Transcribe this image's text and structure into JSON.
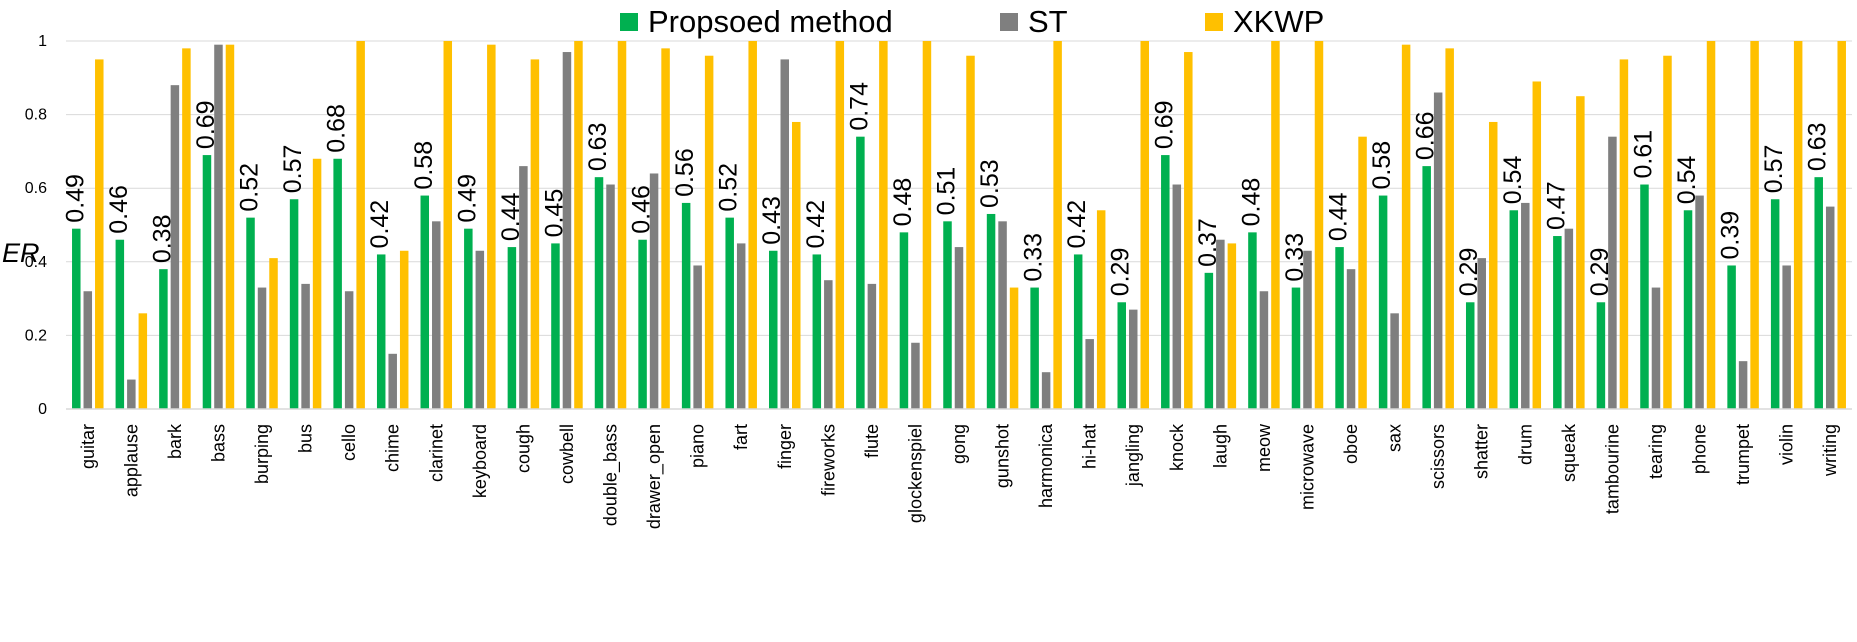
{
  "chart_data": {
    "type": "bar",
    "title": "",
    "xlabel": "",
    "ylabel": "ER",
    "ylim": [
      0,
      1
    ],
    "yticks": [
      "0",
      "0.2",
      "0.4",
      "0.6",
      "0.8",
      "1"
    ],
    "grid": true,
    "legend_position": "top",
    "categories": [
      "guitar",
      "applause",
      "bark",
      "bass",
      "burping",
      "bus",
      "cello",
      "chime",
      "clarinet",
      "keyboard",
      "cough",
      "cowbell",
      "double_bass",
      "drawer_open",
      "piano",
      "fart",
      "finger",
      "fireworks",
      "flute",
      "glockenspiel",
      "gong",
      "gunshot",
      "harmonica",
      "hi-hat",
      "jangling",
      "knock",
      "laugh",
      "meow",
      "microwave",
      "oboe",
      "sax",
      "scissors",
      "shatter",
      "drum",
      "squeak",
      "tambourine",
      "tearing",
      "phone",
      "trumpet",
      "violin",
      "writing"
    ],
    "series": [
      {
        "name": "Propsoed method",
        "color": "#00b050",
        "values": [
          0.49,
          0.46,
          0.38,
          0.69,
          0.52,
          0.57,
          0.68,
          0.42,
          0.58,
          0.49,
          0.44,
          0.45,
          0.63,
          0.46,
          0.56,
          0.52,
          0.43,
          0.42,
          0.74,
          0.48,
          0.51,
          0.53,
          0.33,
          0.42,
          0.29,
          0.69,
          0.37,
          0.48,
          0.33,
          0.44,
          0.58,
          0.66,
          0.29,
          0.54,
          0.47,
          0.29,
          0.61,
          0.54,
          0.39,
          0.57,
          0.63
        ],
        "data_labels": [
          "0.49",
          "0.46",
          "0.38",
          "0.69",
          "0.52",
          "0.57",
          "0.68",
          "0.42",
          "0.58",
          "0.49",
          "0.44",
          "0.45",
          "0.63",
          "0.46",
          "0.56",
          "0.52",
          "0.43",
          "0.42",
          "0.74",
          "0.48",
          "0.51",
          "0.53",
          "0.33",
          "0.42",
          "0.29",
          "0.69",
          "0.37",
          "0.48",
          "0.33",
          "0.44",
          "0.58",
          "0.66",
          "0.29",
          "0.54",
          "0.47",
          "0.29",
          "0.61",
          "0.54",
          "0.39",
          "0.57",
          "0.63"
        ]
      },
      {
        "name": "ST",
        "color": "#7f7f7f",
        "values": [
          0.32,
          0.08,
          0.88,
          0.99,
          0.33,
          0.34,
          0.32,
          0.15,
          0.51,
          0.43,
          0.66,
          0.97,
          0.61,
          0.64,
          0.39,
          0.45,
          0.95,
          0.35,
          0.34,
          0.18,
          0.44,
          0.51,
          0.1,
          0.19,
          0.27,
          0.61,
          0.46,
          0.32,
          0.43,
          0.38,
          0.26,
          0.86,
          0.41,
          0.56,
          0.49,
          0.74,
          0.33,
          0.58,
          0.13,
          0.39,
          0.55
        ]
      },
      {
        "name": "XKWP",
        "color": "#ffc000",
        "values": [
          0.95,
          0.26,
          0.98,
          0.99,
          0.41,
          0.68,
          1.0,
          0.43,
          1.0,
          0.99,
          0.95,
          1.0,
          1.0,
          0.98,
          0.96,
          1.0,
          0.78,
          1.0,
          1.0,
          1.0,
          0.96,
          0.33,
          1.0,
          0.54,
          1.0,
          0.97,
          0.45,
          1.0,
          1.0,
          0.74,
          0.99,
          0.98,
          0.78,
          0.89,
          0.85,
          0.95,
          0.96,
          1.0,
          1.0,
          1.0,
          1.0
        ]
      }
    ]
  }
}
